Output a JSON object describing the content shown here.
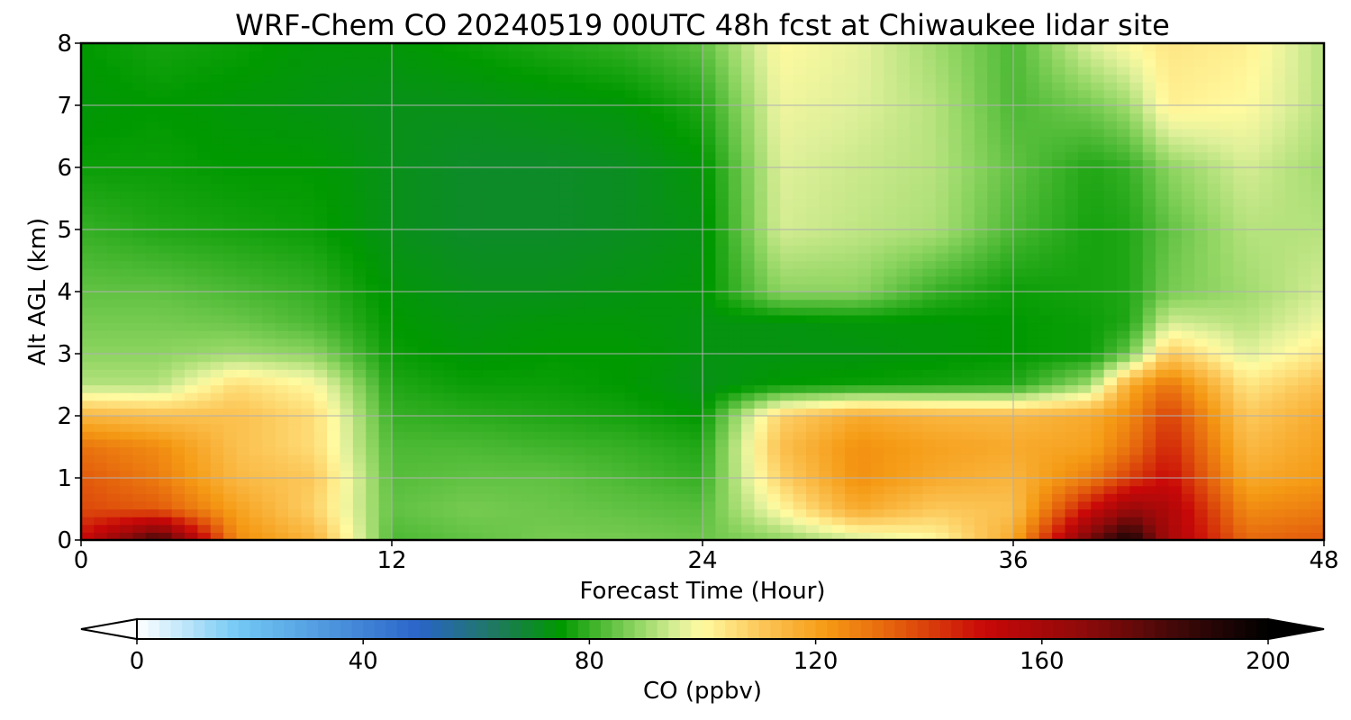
{
  "chart_data": {
    "type": "heatmap",
    "title": "WRF-Chem CO  20240519 00UTC 48h fcst at Chiwaukee lidar site",
    "xlabel": "Forecast Time (Hour)",
    "ylabel": "Alt AGL (km)",
    "xlim": [
      0,
      48
    ],
    "ylim": [
      0,
      8
    ],
    "xticks": [
      "0",
      "12",
      "24",
      "36",
      "48"
    ],
    "yticks": [
      "0",
      "1",
      "2",
      "3",
      "4",
      "5",
      "6",
      "7",
      "8"
    ],
    "grid": true,
    "x_hours": [
      0,
      3,
      6,
      9,
      12,
      15,
      18,
      21,
      24,
      27,
      30,
      33,
      36,
      39,
      40.5,
      42,
      45,
      48
    ],
    "y_km": [
      0,
      0.5,
      1,
      1.5,
      2,
      2.5,
      3,
      3.5,
      4,
      5,
      6,
      7,
      8
    ],
    "co_ppbv": [
      [
        150,
        185,
        125,
        115,
        82,
        84,
        86,
        86,
        85,
        88,
        94,
        100,
        118,
        175,
        195,
        160,
        132,
        135
      ],
      [
        138,
        135,
        120,
        108,
        84,
        86,
        85,
        84,
        83,
        100,
        118,
        110,
        112,
        150,
        165,
        158,
        125,
        128
      ],
      [
        135,
        128,
        114,
        110,
        83,
        84,
        84,
        82,
        80,
        108,
        124,
        118,
        115,
        128,
        140,
        150,
        118,
        122
      ],
      [
        130,
        125,
        112,
        106,
        82,
        82,
        81,
        80,
        78,
        112,
        124,
        120,
        118,
        120,
        130,
        145,
        114,
        120
      ],
      [
        115,
        112,
        112,
        106,
        80,
        79,
        78,
        77,
        75,
        108,
        118,
        115,
        114,
        118,
        125,
        140,
        110,
        118
      ],
      [
        92,
        92,
        106,
        100,
        78,
        76,
        76,
        75,
        72,
        75,
        76,
        77,
        78,
        90,
        118,
        130,
        104,
        112
      ],
      [
        88,
        88,
        90,
        88,
        76,
        74,
        75,
        75,
        73,
        73,
        73,
        74,
        75,
        76,
        85,
        110,
        96,
        104
      ],
      [
        86,
        86,
        85,
        82,
        75,
        73,
        74,
        74,
        73,
        73,
        74,
        74,
        75,
        76,
        78,
        95,
        92,
        98
      ],
      [
        84,
        84,
        82,
        80,
        74,
        72,
        72,
        73,
        74,
        88,
        88,
        80,
        76,
        77,
        78,
        86,
        90,
        95
      ],
      [
        80,
        78,
        77,
        76,
        72,
        70,
        70,
        71,
        73,
        95,
        93,
        91,
        82,
        77,
        78,
        84,
        92,
        92
      ],
      [
        76,
        76,
        75,
        75,
        72,
        70,
        70,
        71,
        74,
        96,
        94,
        92,
        84,
        78,
        80,
        88,
        95,
        90
      ],
      [
        74,
        75,
        74,
        73,
        72,
        72,
        73,
        74,
        78,
        98,
        96,
        92,
        82,
        86,
        90,
        102,
        100,
        92
      ],
      [
        75,
        77,
        76,
        74,
        74,
        76,
        78,
        80,
        84,
        100,
        97,
        90,
        82,
        96,
        100,
        104,
        102,
        92
      ]
    ],
    "colorbar": {
      "label": "CO  (ppbv)",
      "ticks": [
        "0",
        "40",
        "80",
        "120",
        "160",
        "200"
      ],
      "range": [
        0,
        200
      ],
      "extend": "both",
      "colors": [
        {
          "v": 0,
          "c": "#ffffff"
        },
        {
          "v": 18,
          "c": "#72c8f4"
        },
        {
          "v": 50,
          "c": "#2a64c8"
        },
        {
          "v": 64,
          "c": "#1e7a5a"
        },
        {
          "v": 75,
          "c": "#009900"
        },
        {
          "v": 88,
          "c": "#8cd460"
        },
        {
          "v": 96,
          "c": "#dff09a"
        },
        {
          "v": 100,
          "c": "#fffaa0"
        },
        {
          "v": 110,
          "c": "#fcc85a"
        },
        {
          "v": 122,
          "c": "#f59a14"
        },
        {
          "v": 135,
          "c": "#e25a0c"
        },
        {
          "v": 150,
          "c": "#c80808"
        },
        {
          "v": 168,
          "c": "#8c0a0a"
        },
        {
          "v": 185,
          "c": "#3c0808"
        },
        {
          "v": 200,
          "c": "#000000"
        }
      ]
    }
  }
}
